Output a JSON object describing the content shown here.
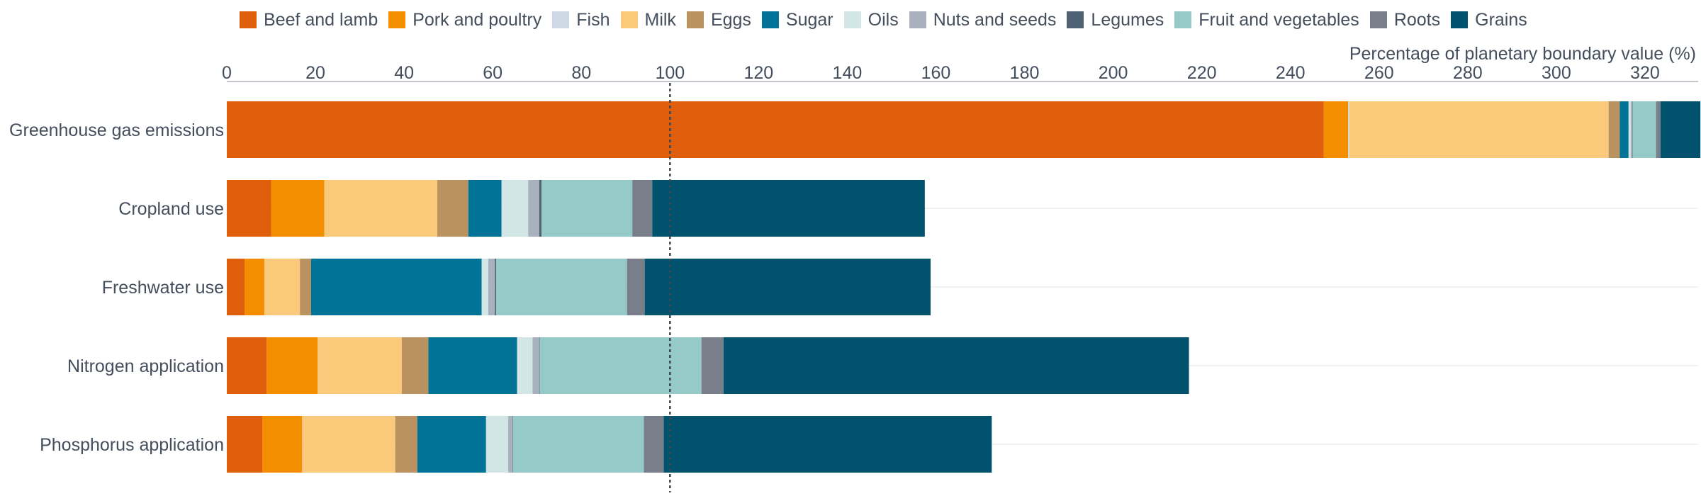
{
  "chart_data": {
    "type": "bar",
    "orientation": "horizontal",
    "stacked": true,
    "xlabel": "Percentage of planetary boundary value (%)",
    "xlim": [
      0,
      332
    ],
    "xticks": [
      0,
      20,
      40,
      60,
      80,
      100,
      120,
      140,
      160,
      180,
      200,
      220,
      240,
      260,
      280,
      300,
      320
    ],
    "reference_line": {
      "x": 100,
      "style": "dotted"
    },
    "legend_position": "top",
    "grid": "horizontal row lines",
    "categories": [
      "Greenhouse gas emissions",
      "Cropland use",
      "Freshwater use",
      "Nitrogen application",
      "Phosphorus application"
    ],
    "series": [
      {
        "name": "Beef and lamb",
        "color": "#de5e0c",
        "values": [
          247.5,
          10,
          4,
          9,
          8
        ]
      },
      {
        "name": "Pork and poultry",
        "color": "#f28e00",
        "values": [
          5.5,
          12,
          4.5,
          11.5,
          9
        ]
      },
      {
        "name": "Fish",
        "color": "#cdd9e5",
        "values": [
          0.3,
          0,
          0,
          0,
          0
        ]
      },
      {
        "name": "Milk",
        "color": "#fbc97a",
        "values": [
          58.5,
          25.5,
          8,
          19,
          21
        ]
      },
      {
        "name": "Eggs",
        "color": "#b9925f",
        "values": [
          2.5,
          7,
          2.5,
          6,
          5
        ]
      },
      {
        "name": "Sugar",
        "color": "#007396",
        "values": [
          2,
          7.5,
          38.5,
          20,
          15.5
        ]
      },
      {
        "name": "Oils",
        "color": "#d2e6e5",
        "values": [
          0.5,
          6,
          1.5,
          3.5,
          5
        ]
      },
      {
        "name": "Nuts and seeds",
        "color": "#a8b1bd",
        "values": [
          0.3,
          2.5,
          1.5,
          1.5,
          1
        ]
      },
      {
        "name": "Legumes",
        "color": "#4f6174",
        "values": [
          0.1,
          0.5,
          0.3,
          0.1,
          0.1
        ]
      },
      {
        "name": "Fruit and vegetables",
        "color": "#95cac8",
        "values": [
          5.3,
          20.5,
          29.5,
          36.5,
          29.5
        ]
      },
      {
        "name": "Roots",
        "color": "#787f8a",
        "values": [
          1,
          4.5,
          4,
          5,
          4.5
        ]
      },
      {
        "name": "Grains",
        "color": "#01536d",
        "values": [
          9,
          61.5,
          64.5,
          105,
          74
        ]
      }
    ]
  }
}
